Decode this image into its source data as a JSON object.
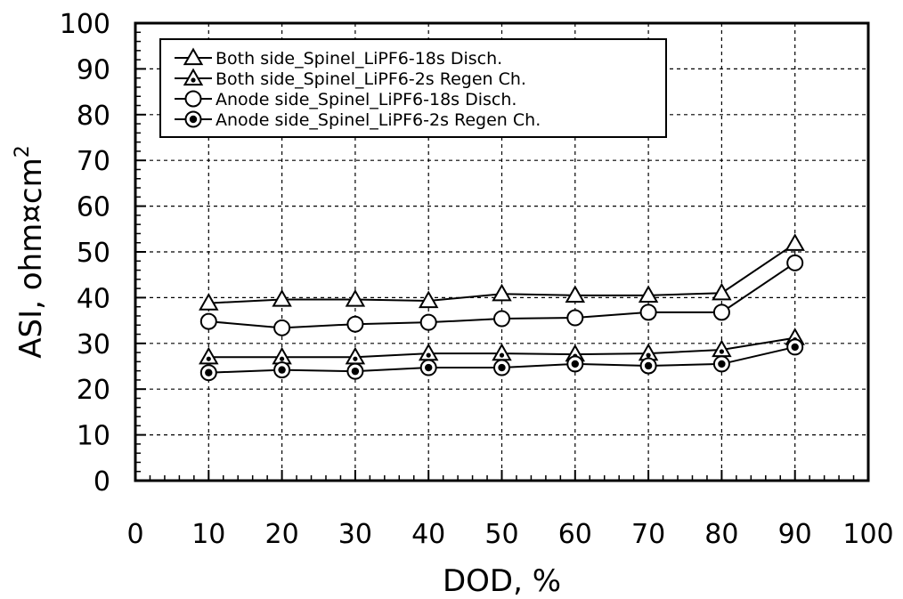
{
  "chart_data": {
    "type": "line",
    "title": "",
    "xlabel": "DOD, %",
    "ylabel": "ASI, ohm¤cm",
    "ylabel_superscript": "2",
    "xlim": [
      0,
      100
    ],
    "ylim": [
      0,
      100
    ],
    "x_ticks": [
      "0",
      "10",
      "20",
      "30",
      "40",
      "50",
      "60",
      "70",
      "80",
      "90",
      "100"
    ],
    "y_ticks": [
      "0",
      "10",
      "20",
      "30",
      "40",
      "50",
      "60",
      "70",
      "80",
      "90",
      "100"
    ],
    "grid": true,
    "legend_position": "top-left",
    "x": [
      10,
      20,
      30,
      40,
      50,
      60,
      70,
      80,
      90
    ],
    "series": [
      {
        "name": "Both side_Spinel_LiPF6-18s Disch.",
        "marker": "open-triangle",
        "values": [
          38.8,
          39.6,
          39.6,
          39.3,
          40.8,
          40.5,
          40.5,
          41.0,
          51.8
        ]
      },
      {
        "name": "Both side_Spinel_LiPF6-2s Regen Ch.",
        "marker": "dotted-triangle",
        "values": [
          27.0,
          27.0,
          27.0,
          27.8,
          27.8,
          27.6,
          27.8,
          28.6,
          31.2
        ]
      },
      {
        "name": "Anode side_Spinel_LiPF6-18s Disch.",
        "marker": "open-circle",
        "values": [
          34.8,
          33.4,
          34.2,
          34.6,
          35.4,
          35.6,
          36.8,
          36.8,
          47.6
        ]
      },
      {
        "name": "Anode side_Spinel_LiPF6-2s Regen Ch.",
        "marker": "dotted-circle",
        "values": [
          23.6,
          24.2,
          23.9,
          24.7,
          24.7,
          25.5,
          25.1,
          25.5,
          29.2
        ]
      }
    ]
  }
}
